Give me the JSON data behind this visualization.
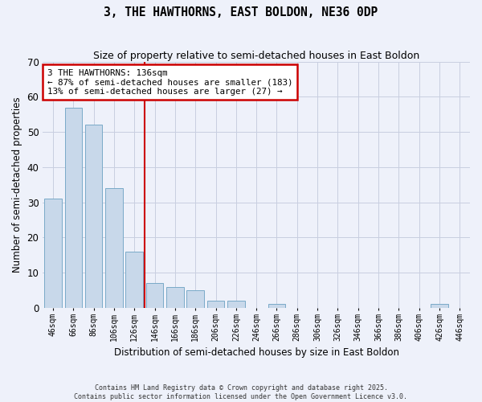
{
  "title": "3, THE HAWTHORNS, EAST BOLDON, NE36 0DP",
  "subtitle": "Size of property relative to semi-detached houses in East Boldon",
  "xlabel": "Distribution of semi-detached houses by size in East Boldon",
  "ylabel": "Number of semi-detached properties",
  "bar_color": "#c8d8ea",
  "bar_edge_color": "#7aaac8",
  "background_color": "#eef1fa",
  "grid_color": "#c8cee0",
  "categories": [
    "46sqm",
    "66sqm",
    "86sqm",
    "106sqm",
    "126sqm",
    "146sqm",
    "166sqm",
    "186sqm",
    "206sqm",
    "226sqm",
    "246sqm",
    "266sqm",
    "286sqm",
    "306sqm",
    "326sqm",
    "346sqm",
    "366sqm",
    "386sqm",
    "406sqm",
    "426sqm",
    "446sqm"
  ],
  "values": [
    31,
    57,
    52,
    34,
    16,
    7,
    6,
    5,
    2,
    2,
    0,
    1,
    0,
    0,
    0,
    0,
    0,
    0,
    0,
    1,
    0
  ],
  "ylim": [
    0,
    70
  ],
  "yticks": [
    0,
    10,
    20,
    30,
    40,
    50,
    60,
    70
  ],
  "marker_bar_index": 4,
  "annotation_title": "3 THE HAWTHORNS: 136sqm",
  "annotation_line2": "← 87% of semi-detached houses are smaller (183)",
  "annotation_line3": "13% of semi-detached houses are larger (27) →",
  "annotation_box_color": "#ffffff",
  "annotation_border_color": "#cc0000",
  "marker_line_color": "#cc0000",
  "footer_line1": "Contains HM Land Registry data © Crown copyright and database right 2025.",
  "footer_line2": "Contains public sector information licensed under the Open Government Licence v3.0."
}
